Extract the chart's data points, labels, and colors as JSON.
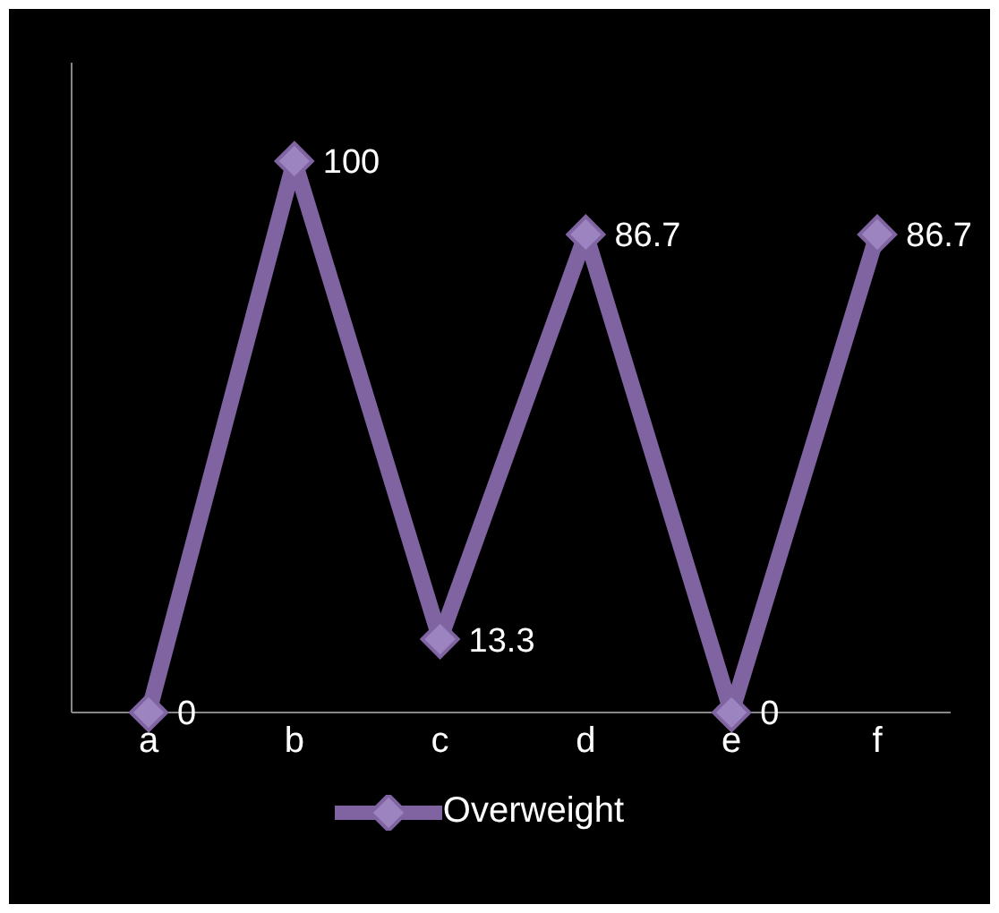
{
  "chart_data": {
    "type": "line",
    "categories": [
      "a",
      "b",
      "c",
      "d",
      "e",
      "f"
    ],
    "series": [
      {
        "name": "Overweight",
        "color": "#8064a2",
        "values": [
          0,
          100,
          13.3,
          86.7,
          0,
          86.7
        ]
      }
    ],
    "data_labels": true,
    "marker": "diamond",
    "legend": "bottom",
    "grid": false
  }
}
